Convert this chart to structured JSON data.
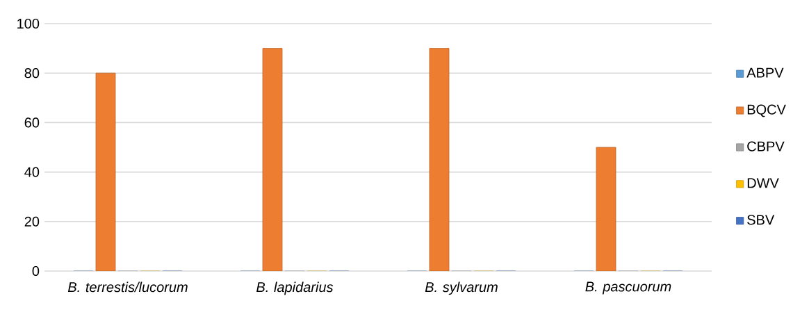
{
  "chart_data": {
    "type": "bar",
    "categories": [
      "B. terrestis/lucorum",
      "B. lapidarius",
      "B. sylvarum",
      "B. pascuorum"
    ],
    "series": [
      {
        "name": "ABPV",
        "color": "#5b9bd5",
        "values": [
          0,
          0,
          0,
          0
        ]
      },
      {
        "name": "BQCV",
        "color": "#ed7d31",
        "values": [
          80,
          90,
          90,
          50
        ]
      },
      {
        "name": "CBPV",
        "color": "#a5a5a5",
        "values": [
          0,
          0,
          0,
          0
        ]
      },
      {
        "name": "DWV",
        "color": "#ffc000",
        "values": [
          0,
          0,
          0,
          0
        ]
      },
      {
        "name": "SBV",
        "color": "#4472c4",
        "values": [
          0,
          0,
          0,
          0
        ]
      }
    ],
    "ylim": [
      0,
      100
    ],
    "yticks": [
      0,
      20,
      40,
      60,
      80,
      100
    ],
    "grid": "y",
    "legend": "right"
  }
}
